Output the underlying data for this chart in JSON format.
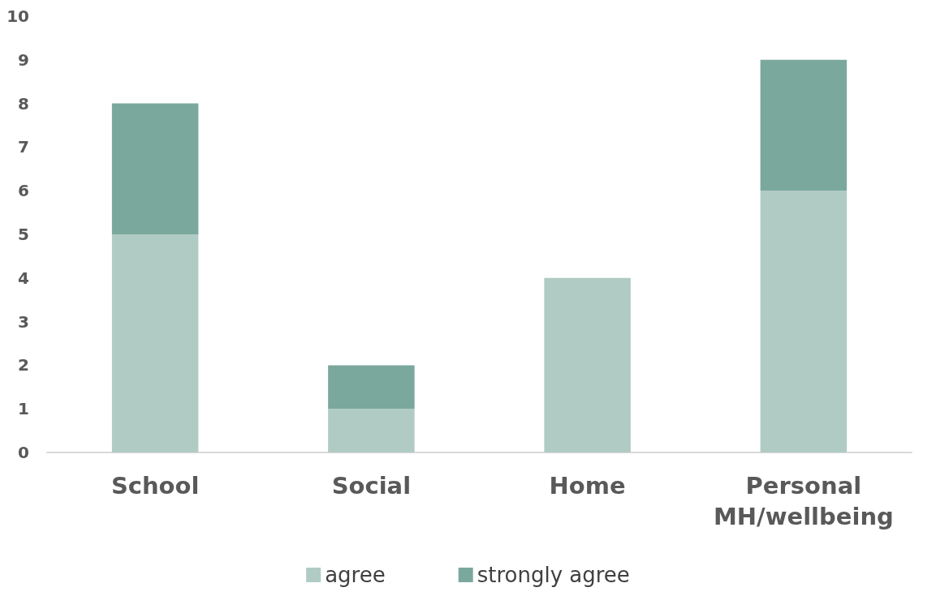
{
  "chart_data": {
    "type": "bar",
    "stacked": true,
    "categories": [
      "School",
      "Social",
      "Home",
      "Personal\nMH/wellbeing"
    ],
    "series": [
      {
        "name": "agree",
        "color": "#b0cbc4",
        "values": [
          5,
          1,
          4,
          6
        ]
      },
      {
        "name": "strongly agree",
        "color": "#7aa89c",
        "values": [
          3,
          1,
          0,
          3
        ]
      }
    ],
    "ylim": [
      0,
      10
    ],
    "yticks": [
      0,
      1,
      2,
      3,
      4,
      5,
      6,
      7,
      8,
      9,
      10
    ],
    "grid": false,
    "legend": "bottom"
  }
}
